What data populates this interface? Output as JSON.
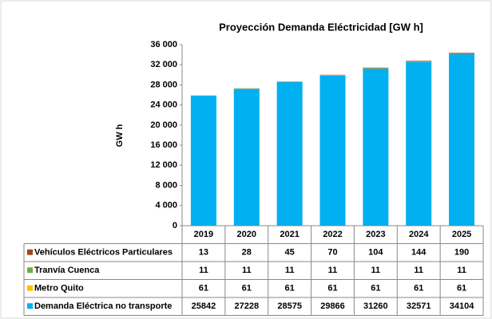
{
  "chart_data": {
    "type": "stacked_bar",
    "title": "Proyección Demanda Eléctricidad [GW h]",
    "y_label": "GW h",
    "categories": [
      "2019",
      "2020",
      "2021",
      "2022",
      "2023",
      "2024",
      "2025"
    ],
    "series": [
      {
        "name": "Vehículos Eléctricos Particulares",
        "color": "#9c4a1a",
        "values": [
          13,
          28,
          45,
          70,
          104,
          144,
          190
        ]
      },
      {
        "name": "Tranvía Cuenca",
        "color": "#70ad47",
        "values": [
          11,
          11,
          11,
          11,
          11,
          11,
          11
        ]
      },
      {
        "name": "Metro Quito",
        "color": "#ffc000",
        "values": [
          61,
          61,
          61,
          61,
          61,
          61,
          61
        ]
      },
      {
        "name": "Demanda Eléctrica no transporte",
        "color": "#00b0f0",
        "values": [
          25842,
          27228,
          28575,
          29866,
          31260,
          32571,
          34104
        ]
      }
    ],
    "ylim": [
      0,
      36000
    ],
    "yticks": [
      0,
      {
        "value": 4000,
        "label": "4 000"
      },
      {
        "value": 8000,
        "label": "8 000"
      },
      {
        "value": 12000,
        "label": "12 000"
      },
      {
        "value": 16000,
        "label": "16 000"
      },
      {
        "value": 20000,
        "label": "20 000"
      },
      {
        "value": 24000,
        "label": "24 000"
      },
      {
        "value": 28000,
        "label": "28 000"
      },
      {
        "value": 32000,
        "label": "32 000"
      },
      {
        "value": 36000,
        "label": "36 000"
      }
    ]
  }
}
